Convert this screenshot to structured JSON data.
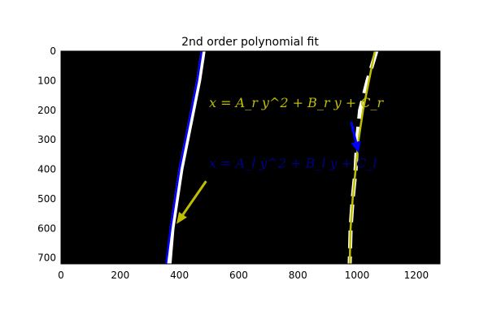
{
  "chart_data": {
    "type": "line",
    "title": "2nd order polynomial fit",
    "xlabel": "",
    "ylabel": "",
    "xlim": [
      0,
      1280
    ],
    "ylim": [
      720,
      0
    ],
    "x_ticks": [
      0,
      200,
      400,
      600,
      800,
      1000,
      1200
    ],
    "y_ticks": [
      0,
      100,
      200,
      300,
      400,
      500,
      600,
      700
    ],
    "grid": false,
    "background": "binary lane-pixel image",
    "series": [
      {
        "color": "#0000ff",
        "label": "x = A_l y^2 + B_l y + C_l",
        "points": [
          [
            475,
            0
          ],
          [
            460,
            100
          ],
          [
            440,
            200
          ],
          [
            420,
            300
          ],
          [
            400,
            400
          ],
          [
            385,
            500
          ],
          [
            370,
            600
          ],
          [
            355,
            720
          ]
        ]
      },
      {
        "color": "#bfbf00",
        "label": "x = A_r y^2 + B_r y + C_r",
        "points": [
          [
            1060,
            0
          ],
          [
            1040,
            100
          ],
          [
            1020,
            200
          ],
          [
            1005,
            300
          ],
          [
            995,
            400
          ],
          [
            985,
            500
          ],
          [
            978,
            600
          ],
          [
            975,
            720
          ]
        ]
      }
    ],
    "lane_pixels": {
      "color": "#ffffff",
      "left_lane": [
        [
          480,
          0
        ],
        [
          465,
          100
        ],
        [
          445,
          200
        ],
        [
          425,
          300
        ],
        [
          405,
          400
        ],
        [
          390,
          500
        ],
        [
          375,
          600
        ],
        [
          365,
          720
        ]
      ],
      "right_lane": [
        [
          1065,
          0
        ],
        [
          1035,
          100
        ],
        [
          1010,
          200
        ],
        [
          1000,
          300
        ],
        [
          995,
          400
        ],
        [
          985,
          500
        ],
        [
          978,
          600
        ],
        [
          975,
          720
        ]
      ]
    },
    "annotations": [
      {
        "text": "x = A_r y^2 + B_r y + C_r",
        "equation_color": "#bfbf00",
        "text_position": [
          500,
          190
        ],
        "arrow_from": [
          980,
          240
        ],
        "arrow_to": [
          1005,
          345
        ]
      },
      {
        "text": "x = A_l y^2 + B_l y + C_l",
        "equation_color": "#00008b",
        "text_position": [
          500,
          395
        ],
        "arrow_from": [
          490,
          440
        ],
        "arrow_to": [
          390,
          585
        ]
      }
    ]
  }
}
